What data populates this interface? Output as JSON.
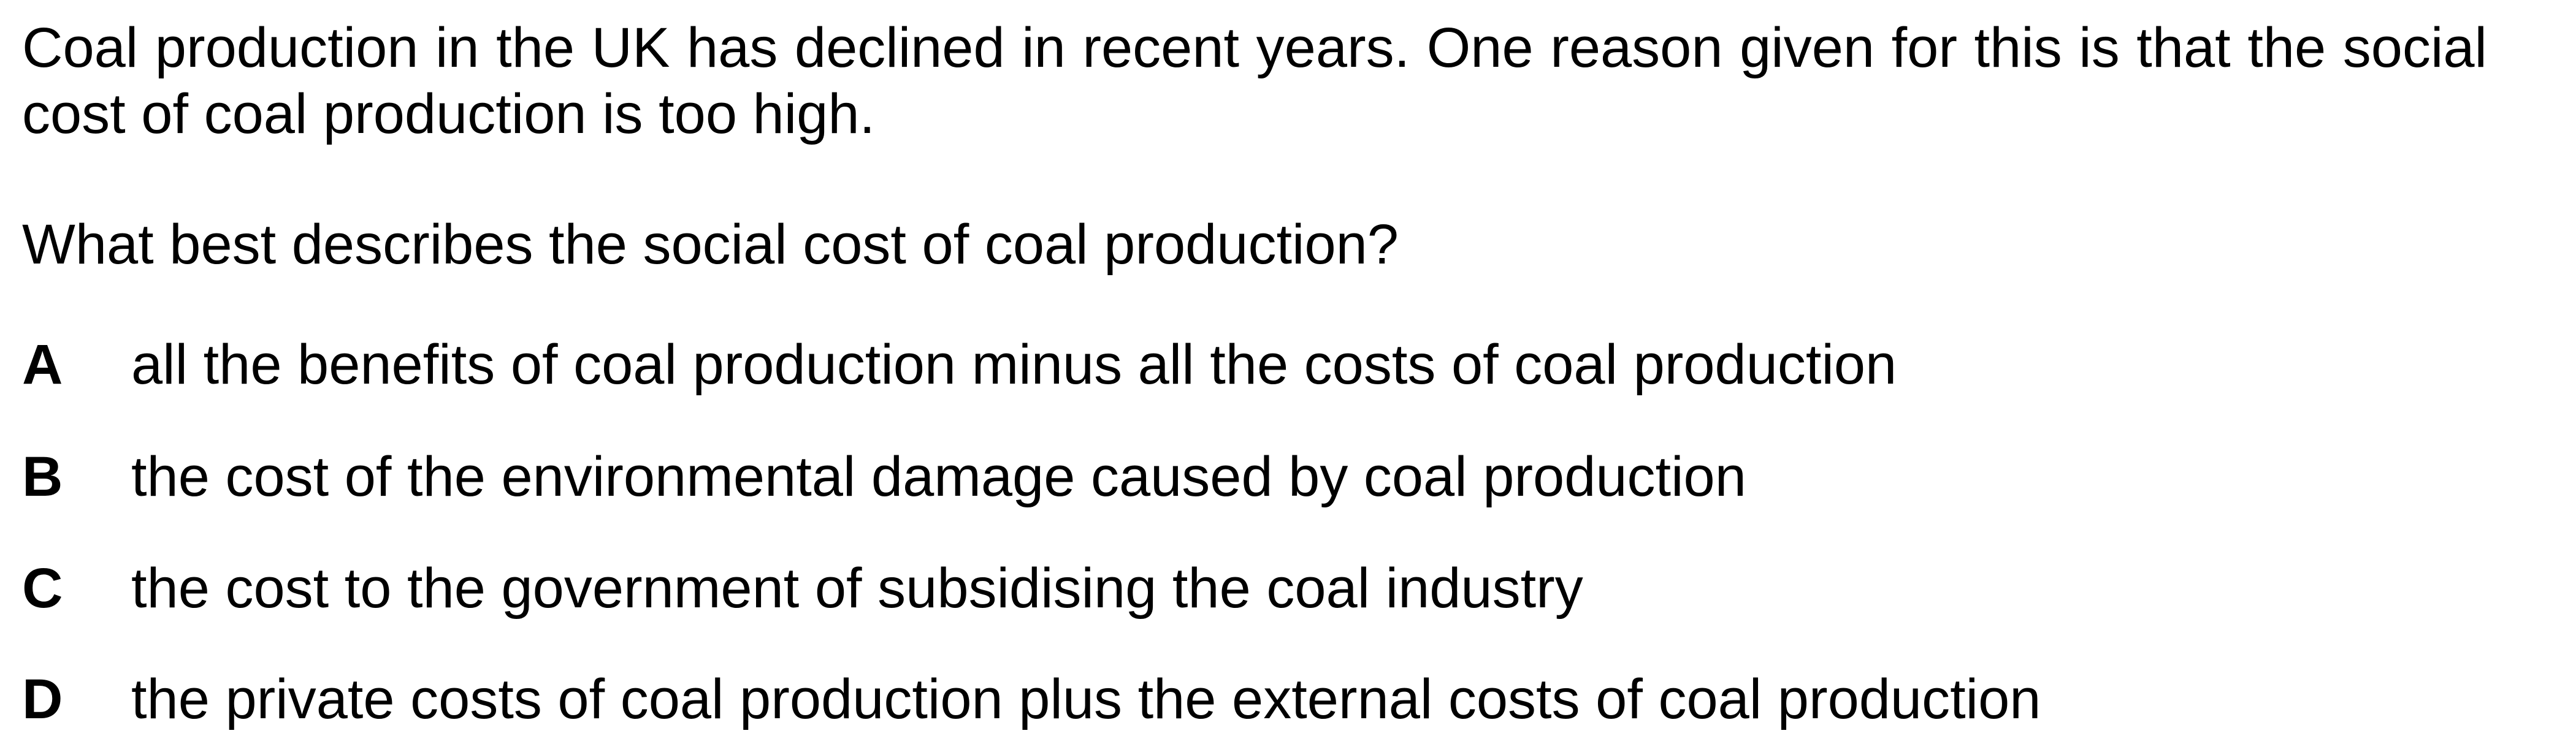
{
  "stem": "Coal production in the UK has declined in recent years. One reason given for this is that the social cost of coal production is too high.",
  "question": "What best describes the social cost of coal production?",
  "options": [
    {
      "letter": "A",
      "text": "all the benefits of coal production minus all the costs of coal production"
    },
    {
      "letter": "B",
      "text": "the cost of the environmental damage caused by coal production"
    },
    {
      "letter": "C",
      "text": "the cost to the government of subsidising the coal industry"
    },
    {
      "letter": "D",
      "text": "the private costs of coal production plus the external costs of coal production"
    }
  ]
}
